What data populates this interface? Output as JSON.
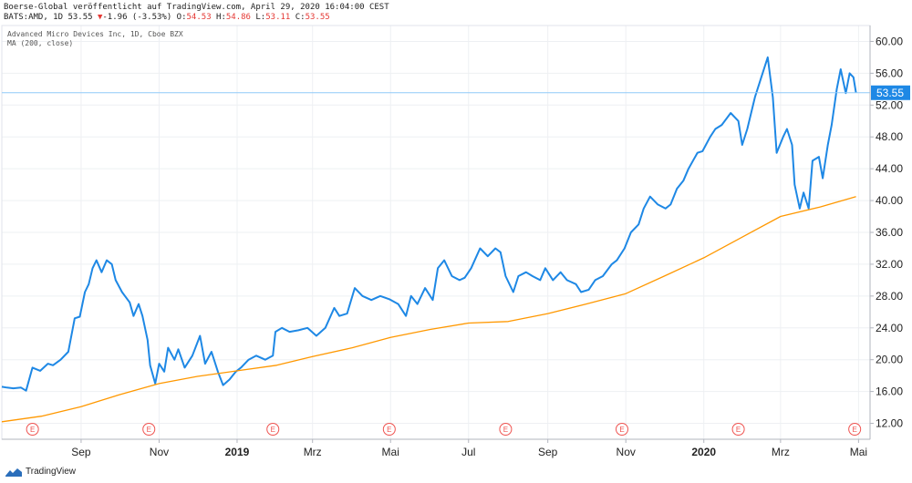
{
  "header": {
    "publisher": "Boerse-Global veröffentlicht auf TradingView.com, April 29, 2020 16:04:00 CEST",
    "symbol": "BATS:AMD, 1D",
    "last": "53.55",
    "change_arrow": "▼",
    "change": "-1.96 (-3.53%)",
    "o_label": "O:",
    "o_value": "54.53",
    "h_label": "H:",
    "h_value": "54.86",
    "l_label": "L:",
    "l_value": "53.11",
    "c_label": "C:",
    "c_value": "53.55"
  },
  "footer": {
    "brand": "TradingView",
    "logo_icon": "tradingview-logo-icon"
  },
  "colors": {
    "price": "#1e88e5",
    "ma": "#ff9800",
    "last_line": "#90caf9",
    "earnings": "#ef5350",
    "grid": "#eef0f3"
  },
  "chart_data": {
    "type": "line",
    "instrument": "Advanced Micro Devices Inc, 1D, Cboe BZX",
    "indicator": "MA (200, close)",
    "ylim": [
      10,
      62
    ],
    "y_ticks": [
      "12.00",
      "16.00",
      "20.00",
      "24.00",
      "28.00",
      "32.00",
      "36.00",
      "40.00",
      "44.00",
      "48.00",
      "52.00",
      "56.00",
      "60.00"
    ],
    "x_range": [
      "2018-07-01",
      "2020-05-10"
    ],
    "x_ticks": [
      {
        "label": "Sep",
        "date": "2018-09-01",
        "bold": false
      },
      {
        "label": "Nov",
        "date": "2018-11-01",
        "bold": false
      },
      {
        "label": "2019",
        "date": "2019-01-01",
        "bold": true
      },
      {
        "label": "Mrz",
        "date": "2019-03-01",
        "bold": false
      },
      {
        "label": "Mai",
        "date": "2019-05-01",
        "bold": false
      },
      {
        "label": "Jul",
        "date": "2019-07-01",
        "bold": false
      },
      {
        "label": "Sep",
        "date": "2019-09-01",
        "bold": false
      },
      {
        "label": "Nov",
        "date": "2019-11-01",
        "bold": false
      },
      {
        "label": "2020",
        "date": "2020-01-01",
        "bold": true
      },
      {
        "label": "Mrz",
        "date": "2020-03-01",
        "bold": false
      },
      {
        "label": "Mai",
        "date": "2020-05-01",
        "bold": false
      }
    ],
    "last_price_label": "53.55",
    "earnings_marker": "E",
    "earnings_dates": [
      "2018-07-25",
      "2018-10-24",
      "2019-01-29",
      "2019-04-30",
      "2019-07-30",
      "2019-10-29",
      "2020-01-28",
      "2020-04-28"
    ],
    "series": [
      {
        "role": "price",
        "points": [
          [
            "2018-07-01",
            16.6
          ],
          [
            "2018-07-05",
            16.5
          ],
          [
            "2018-07-10",
            16.4
          ],
          [
            "2018-07-16",
            16.5
          ],
          [
            "2018-07-20",
            16.1
          ],
          [
            "2018-07-25",
            19.0
          ],
          [
            "2018-07-31",
            18.6
          ],
          [
            "2018-08-06",
            19.5
          ],
          [
            "2018-08-10",
            19.3
          ],
          [
            "2018-08-16",
            20.0
          ],
          [
            "2018-08-22",
            21.0
          ],
          [
            "2018-08-27",
            25.2
          ],
          [
            "2018-08-31",
            25.4
          ],
          [
            "2018-09-04",
            28.5
          ],
          [
            "2018-09-07",
            29.5
          ],
          [
            "2018-09-10",
            31.5
          ],
          [
            "2018-09-13",
            32.5
          ],
          [
            "2018-09-17",
            31.0
          ],
          [
            "2018-09-21",
            32.5
          ],
          [
            "2018-09-25",
            32.0
          ],
          [
            "2018-09-28",
            30.0
          ],
          [
            "2018-10-03",
            28.5
          ],
          [
            "2018-10-09",
            27.2
          ],
          [
            "2018-10-12",
            25.5
          ],
          [
            "2018-10-16",
            27.0
          ],
          [
            "2018-10-19",
            25.5
          ],
          [
            "2018-10-23",
            22.5
          ],
          [
            "2018-10-25",
            19.3
          ],
          [
            "2018-10-29",
            17.0
          ],
          [
            "2018-11-01",
            19.5
          ],
          [
            "2018-11-05",
            18.5
          ],
          [
            "2018-11-08",
            21.5
          ],
          [
            "2018-11-13",
            20.0
          ],
          [
            "2018-11-16",
            21.3
          ],
          [
            "2018-11-21",
            19.0
          ],
          [
            "2018-11-27",
            20.5
          ],
          [
            "2018-12-03",
            23.0
          ],
          [
            "2018-12-07",
            19.5
          ],
          [
            "2018-12-12",
            21.0
          ],
          [
            "2018-12-17",
            18.5
          ],
          [
            "2018-12-21",
            16.8
          ],
          [
            "2018-12-26",
            17.5
          ],
          [
            "2018-12-31",
            18.5
          ],
          [
            "2019-01-04",
            19.0
          ],
          [
            "2019-01-10",
            20.0
          ],
          [
            "2019-01-16",
            20.5
          ],
          [
            "2019-01-23",
            20.0
          ],
          [
            "2019-01-29",
            20.5
          ],
          [
            "2019-01-31",
            23.5
          ],
          [
            "2019-02-05",
            24.0
          ],
          [
            "2019-02-11",
            23.5
          ],
          [
            "2019-02-18",
            23.7
          ],
          [
            "2019-02-25",
            24.0
          ],
          [
            "2019-03-04",
            23.0
          ],
          [
            "2019-03-11",
            24.0
          ],
          [
            "2019-03-18",
            26.5
          ],
          [
            "2019-03-22",
            25.5
          ],
          [
            "2019-03-28",
            25.8
          ],
          [
            "2019-04-03",
            29.0
          ],
          [
            "2019-04-09",
            28.0
          ],
          [
            "2019-04-16",
            27.5
          ],
          [
            "2019-04-23",
            28.0
          ],
          [
            "2019-04-30",
            27.6
          ],
          [
            "2019-05-07",
            27.0
          ],
          [
            "2019-05-13",
            25.5
          ],
          [
            "2019-05-17",
            28.0
          ],
          [
            "2019-05-22",
            27.0
          ],
          [
            "2019-05-28",
            29.0
          ],
          [
            "2019-06-03",
            27.5
          ],
          [
            "2019-06-07",
            31.5
          ],
          [
            "2019-06-12",
            32.5
          ],
          [
            "2019-06-18",
            30.5
          ],
          [
            "2019-06-24",
            30.0
          ],
          [
            "2019-06-28",
            30.3
          ],
          [
            "2019-07-03",
            31.5
          ],
          [
            "2019-07-10",
            34.0
          ],
          [
            "2019-07-16",
            33.0
          ],
          [
            "2019-07-22",
            34.0
          ],
          [
            "2019-07-26",
            33.5
          ],
          [
            "2019-07-30",
            30.5
          ],
          [
            "2019-08-05",
            28.5
          ],
          [
            "2019-08-09",
            30.5
          ],
          [
            "2019-08-15",
            31.0
          ],
          [
            "2019-08-20",
            30.5
          ],
          [
            "2019-08-26",
            30.0
          ],
          [
            "2019-08-30",
            31.5
          ],
          [
            "2019-09-05",
            30.0
          ],
          [
            "2019-09-11",
            31.0
          ],
          [
            "2019-09-16",
            30.0
          ],
          [
            "2019-09-23",
            29.5
          ],
          [
            "2019-09-27",
            28.5
          ],
          [
            "2019-10-03",
            28.8
          ],
          [
            "2019-10-08",
            30.0
          ],
          [
            "2019-10-14",
            30.5
          ],
          [
            "2019-10-21",
            32.0
          ],
          [
            "2019-10-25",
            32.5
          ],
          [
            "2019-10-31",
            34.0
          ],
          [
            "2019-11-05",
            36.0
          ],
          [
            "2019-11-11",
            37.0
          ],
          [
            "2019-11-15",
            39.0
          ],
          [
            "2019-11-20",
            40.5
          ],
          [
            "2019-11-26",
            39.5
          ],
          [
            "2019-12-02",
            39.0
          ],
          [
            "2019-12-06",
            39.5
          ],
          [
            "2019-12-11",
            41.5
          ],
          [
            "2019-12-16",
            42.5
          ],
          [
            "2019-12-20",
            44.0
          ],
          [
            "2019-12-27",
            46.0
          ],
          [
            "2019-12-31",
            46.2
          ],
          [
            "2020-01-06",
            48.0
          ],
          [
            "2020-01-10",
            49.0
          ],
          [
            "2020-01-15",
            49.5
          ],
          [
            "2020-01-22",
            51.0
          ],
          [
            "2020-01-28",
            50.0
          ],
          [
            "2020-01-31",
            47.0
          ],
          [
            "2020-02-04",
            49.0
          ],
          [
            "2020-02-10",
            53.0
          ],
          [
            "2020-02-14",
            55.0
          ],
          [
            "2020-02-20",
            58.0
          ],
          [
            "2020-02-24",
            53.0
          ],
          [
            "2020-02-27",
            46.0
          ],
          [
            "2020-03-03",
            48.0
          ],
          [
            "2020-03-06",
            49.0
          ],
          [
            "2020-03-10",
            47.0
          ],
          [
            "2020-03-12",
            42.0
          ],
          [
            "2020-03-16",
            39.0
          ],
          [
            "2020-03-19",
            41.0
          ],
          [
            "2020-03-23",
            39.0
          ],
          [
            "2020-03-26",
            45.0
          ],
          [
            "2020-03-31",
            45.5
          ],
          [
            "2020-04-03",
            42.8
          ],
          [
            "2020-04-07",
            47.0
          ],
          [
            "2020-04-10",
            49.5
          ],
          [
            "2020-04-14",
            54.0
          ],
          [
            "2020-04-17",
            56.5
          ],
          [
            "2020-04-21",
            53.5
          ],
          [
            "2020-04-24",
            56.0
          ],
          [
            "2020-04-27",
            55.5
          ],
          [
            "2020-04-29",
            53.55
          ]
        ]
      },
      {
        "role": "ma",
        "points": [
          [
            "2018-07-01",
            12.2
          ],
          [
            "2018-08-01",
            12.9
          ],
          [
            "2018-09-01",
            14.1
          ],
          [
            "2018-10-01",
            15.6
          ],
          [
            "2018-11-01",
            17.0
          ],
          [
            "2018-12-01",
            17.9
          ],
          [
            "2019-01-01",
            18.6
          ],
          [
            "2019-02-01",
            19.3
          ],
          [
            "2019-03-01",
            20.4
          ],
          [
            "2019-04-01",
            21.5
          ],
          [
            "2019-05-01",
            22.8
          ],
          [
            "2019-06-01",
            23.8
          ],
          [
            "2019-07-01",
            24.6
          ],
          [
            "2019-08-01",
            24.8
          ],
          [
            "2019-09-01",
            25.8
          ],
          [
            "2019-10-01",
            27.0
          ],
          [
            "2019-11-01",
            28.3
          ],
          [
            "2019-12-01",
            30.5
          ],
          [
            "2020-01-01",
            32.8
          ],
          [
            "2020-02-01",
            35.5
          ],
          [
            "2020-03-01",
            38.0
          ],
          [
            "2020-04-01",
            39.2
          ],
          [
            "2020-04-29",
            40.5
          ]
        ]
      }
    ]
  }
}
